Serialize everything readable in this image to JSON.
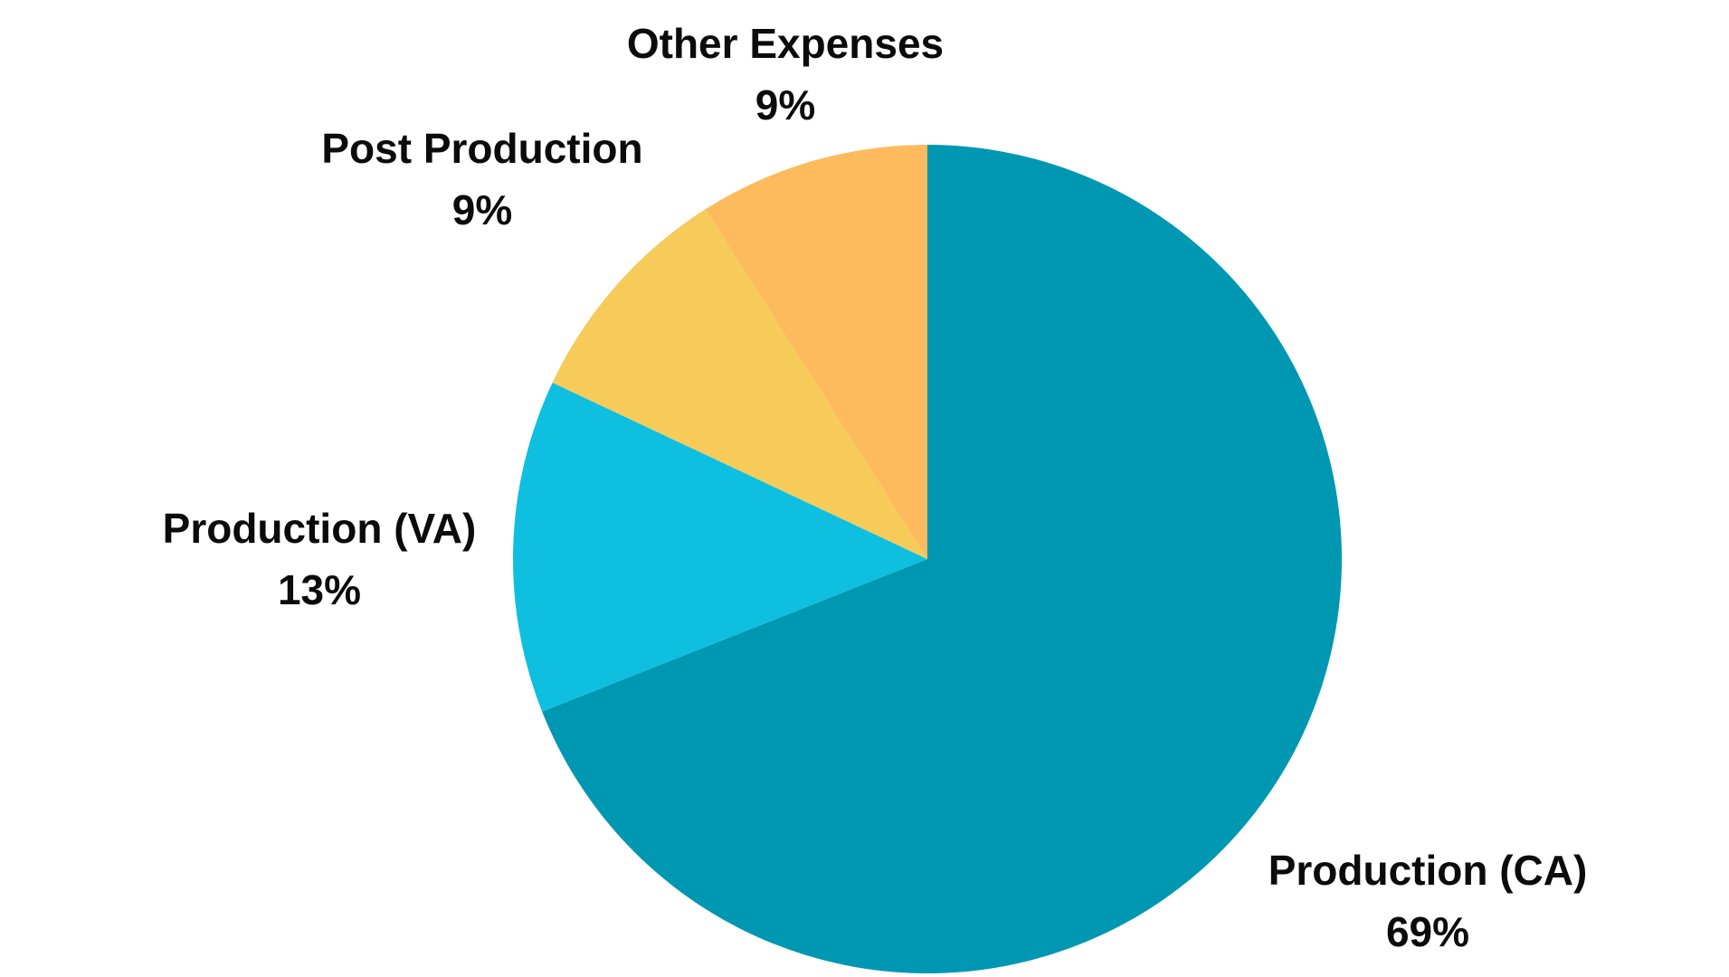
{
  "chart_data": {
    "type": "pie",
    "title": "",
    "start_angle_deg": 0,
    "direction": "clockwise",
    "slices": [
      {
        "label": "Production (CA)",
        "value": 69,
        "value_label": "69%",
        "color": "#0097B2"
      },
      {
        "label": "Production (VA)",
        "value": 13,
        "value_label": "13%",
        "color": "#0FBFDF"
      },
      {
        "label": "Post Production",
        "value": 9,
        "value_label": "9%",
        "color": "#F6CB5A"
      },
      {
        "label": "Other Expenses",
        "value": 9,
        "value_label": "9%",
        "color": "#FDBB5E"
      }
    ]
  }
}
